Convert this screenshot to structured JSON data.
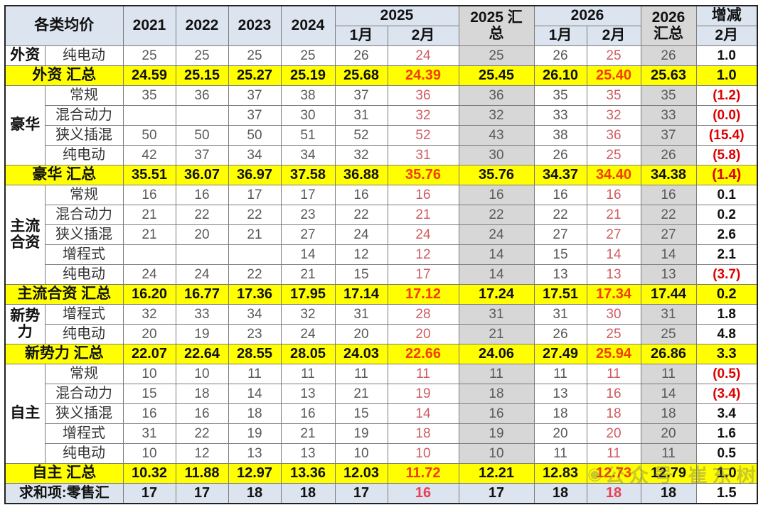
{
  "colors": {
    "header_blue": "#dce4f0",
    "total_yellow": "#ffff00",
    "summary_gray": "#d7d7d7",
    "red_value": "#cf5a60",
    "red_total": "#f43b00",
    "red_negative": "#dd0000"
  },
  "watermark": {
    "logo_icon": "◉",
    "text": "公众号 崔东树"
  },
  "chart_data": {
    "type": "table",
    "title": "各类均价",
    "columns": [
      "各类均价",
      "2021",
      "2022",
      "2023",
      "2024",
      "2025 1月",
      "2025 2月",
      "2025 汇总",
      "2026 1月",
      "2026 2月",
      "2026 汇总",
      "增减 2月"
    ],
    "header": {
      "corner": "各类均价",
      "years": [
        "2021",
        "2022",
        "2023",
        "2024"
      ],
      "group_2025": "2025",
      "total_2025_line1": "2025 汇",
      "total_2025_line2": "总",
      "group_2026": "2026",
      "total_2026_line1": "2026",
      "total_2026_line2": "汇总",
      "change": "增减",
      "jan": "1月",
      "feb": "2月"
    },
    "rows": [
      {
        "type": "data",
        "group": "外资",
        "group_span": 1,
        "label": "纯电动",
        "values": [
          "25",
          "25",
          "25",
          "25",
          "26",
          "24",
          "25",
          "26",
          "25",
          "26",
          "1.0"
        ]
      },
      {
        "type": "total",
        "label": "外资 汇总",
        "values": [
          "24.59",
          "25.15",
          "25.27",
          "25.19",
          "25.68",
          "24.39",
          "25.45",
          "26.10",
          "25.40",
          "25.63",
          "1.0"
        ]
      },
      {
        "type": "data",
        "group": "豪华",
        "group_span": 4,
        "label": "常规",
        "values": [
          "35",
          "36",
          "37",
          "38",
          "37",
          "36",
          "36",
          "35",
          "35",
          "35",
          "(1.2)"
        ]
      },
      {
        "type": "data",
        "label": "混合动力",
        "values": [
          "",
          "",
          "37",
          "30",
          "31",
          "32",
          "32",
          "33",
          "32",
          "33",
          "(0.0)"
        ]
      },
      {
        "type": "data",
        "label": "狭义插混",
        "values": [
          "50",
          "50",
          "50",
          "51",
          "52",
          "52",
          "43",
          "38",
          "36",
          "37",
          "(15.4)"
        ]
      },
      {
        "type": "data",
        "label": "纯电动",
        "values": [
          "42",
          "37",
          "34",
          "34",
          "32",
          "31",
          "30",
          "26",
          "25",
          "26",
          "(5.8)"
        ]
      },
      {
        "type": "total",
        "label": "豪华 汇总",
        "values": [
          "35.51",
          "36.07",
          "36.97",
          "37.58",
          "36.88",
          "35.76",
          "35.76",
          "34.37",
          "34.40",
          "34.38",
          "(1.4)"
        ]
      },
      {
        "type": "data",
        "group": "主流合资",
        "group_span": 5,
        "label": "常规",
        "values": [
          "16",
          "16",
          "17",
          "17",
          "16",
          "16",
          "16",
          "16",
          "16",
          "16",
          "0.1"
        ]
      },
      {
        "type": "data",
        "label": "混合动力",
        "values": [
          "21",
          "22",
          "22",
          "23",
          "22",
          "21",
          "22",
          "22",
          "21",
          "22",
          "0.2"
        ]
      },
      {
        "type": "data",
        "label": "狭义插混",
        "values": [
          "21",
          "20",
          "21",
          "27",
          "24",
          "24",
          "24",
          "27",
          "27",
          "27",
          "2.6"
        ]
      },
      {
        "type": "data",
        "label": "增程式",
        "values": [
          "",
          "",
          "",
          "14",
          "12",
          "12",
          "14",
          "15",
          "14",
          "14",
          "2.1"
        ]
      },
      {
        "type": "data",
        "label": "纯电动",
        "values": [
          "24",
          "24",
          "22",
          "21",
          "15",
          "17",
          "14",
          "13",
          "13",
          "13",
          "(3.7)"
        ]
      },
      {
        "type": "total",
        "label": "主流合资 汇总",
        "values": [
          "16.20",
          "16.77",
          "17.36",
          "17.95",
          "17.14",
          "17.12",
          "17.24",
          "17.51",
          "17.34",
          "17.44",
          "0.2"
        ]
      },
      {
        "type": "data",
        "group": "新势力",
        "group_span": 2,
        "label": "增程式",
        "values": [
          "32",
          "33",
          "34",
          "32",
          "31",
          "28",
          "31",
          "31",
          "30",
          "31",
          "1.8"
        ]
      },
      {
        "type": "data",
        "label": "纯电动",
        "values": [
          "20",
          "19",
          "23",
          "24",
          "20",
          "20",
          "21",
          "26",
          "25",
          "25",
          "4.8"
        ]
      },
      {
        "type": "total",
        "label": "新势力 汇总",
        "values": [
          "22.07",
          "22.64",
          "28.55",
          "28.05",
          "24.03",
          "22.66",
          "24.06",
          "27.49",
          "25.94",
          "26.86",
          "3.3"
        ]
      },
      {
        "type": "data",
        "group": "自主",
        "group_span": 5,
        "label": "常规",
        "values": [
          "10",
          "10",
          "11",
          "11",
          "11",
          "11",
          "11",
          "11",
          "11",
          "11",
          "(0.5)"
        ]
      },
      {
        "type": "data",
        "label": "混合动力",
        "values": [
          "15",
          "18",
          "14",
          "13",
          "21",
          "19",
          "18",
          "13",
          "16",
          "14",
          "(3.4)"
        ]
      },
      {
        "type": "data",
        "label": "狭义插混",
        "values": [
          "16",
          "16",
          "18",
          "16",
          "15",
          "14",
          "16",
          "18",
          "18",
          "18",
          "3.4"
        ]
      },
      {
        "type": "data",
        "label": "增程式",
        "values": [
          "31",
          "22",
          "19",
          "21",
          "19",
          "18",
          "19",
          "20",
          "20",
          "20",
          "1.6"
        ]
      },
      {
        "type": "data",
        "label": "纯电动",
        "values": [
          "10",
          "12",
          "13",
          "13",
          "10",
          "10",
          "10",
          "11",
          "11",
          "11",
          "0.5"
        ]
      },
      {
        "type": "total",
        "label": "自主 汇总",
        "values": [
          "10.32",
          "11.88",
          "12.97",
          "13.36",
          "12.03",
          "11.72",
          "12.21",
          "12.83",
          "12.73",
          "12.79",
          "1.0"
        ]
      },
      {
        "type": "grand",
        "label": "求和项:零售汇",
        "values": [
          "17",
          "17",
          "18",
          "18",
          "17",
          "16",
          "17",
          "18",
          "18",
          "18",
          "1.5"
        ]
      }
    ]
  }
}
